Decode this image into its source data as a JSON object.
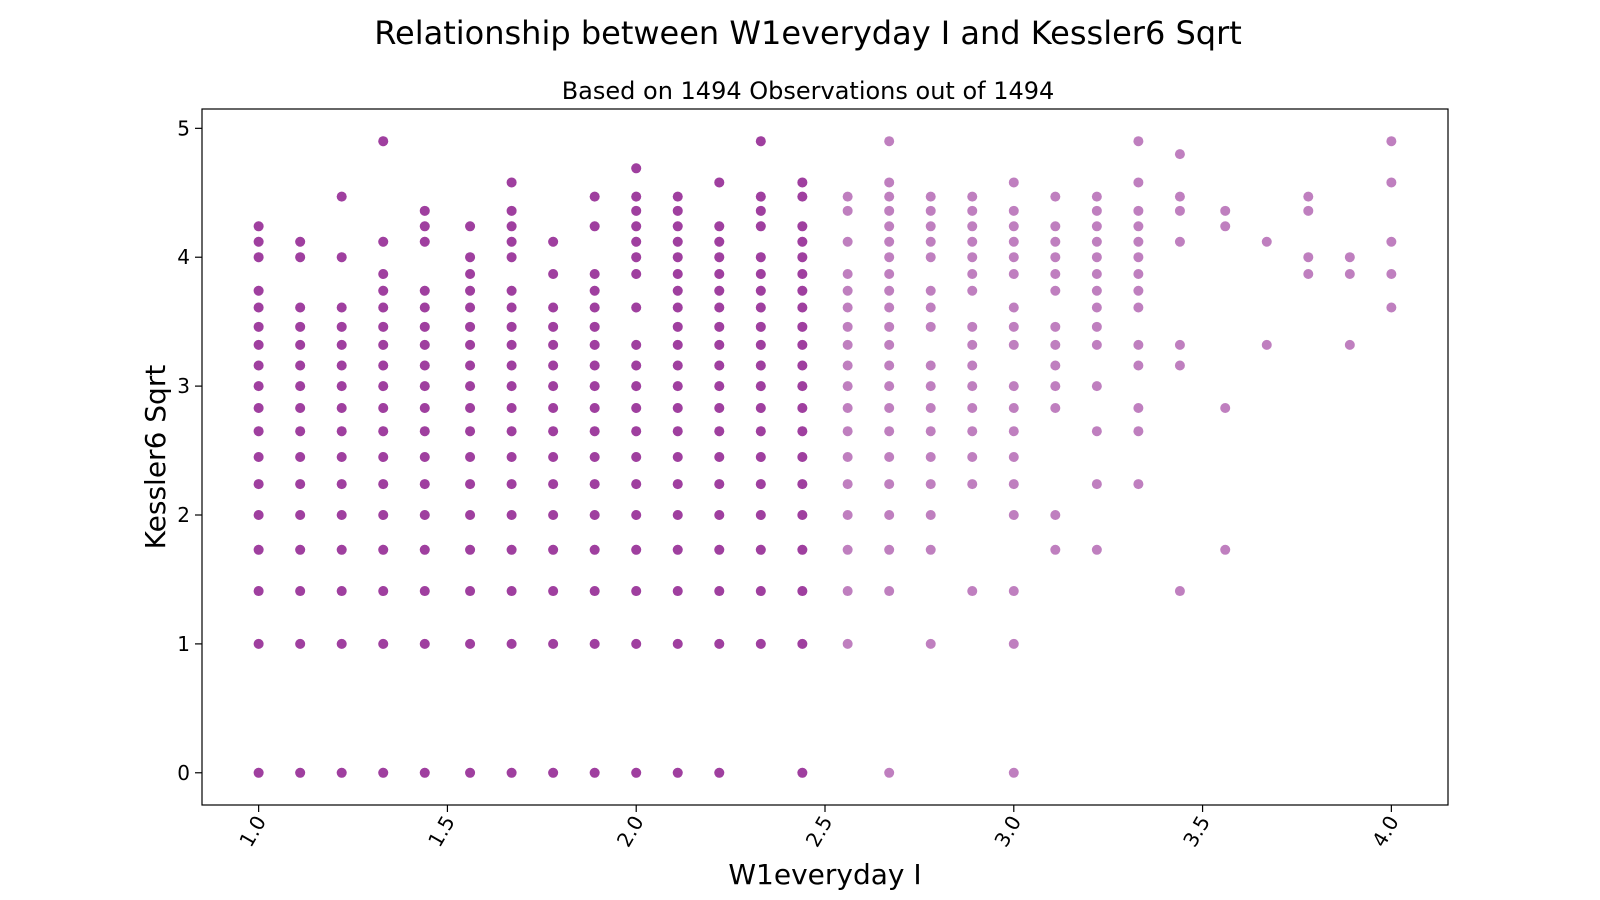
{
  "chart_data": {
    "type": "scatter",
    "title": "Relationship between W1everyday I and Kessler6 Sqrt",
    "subtitle": "Based on 1494 Observations out of 1494",
    "xlabel": "W1everyday I",
    "ylabel": "Kessler6 Sqrt",
    "xlim": [
      0.85,
      4.15
    ],
    "ylim": [
      -0.25,
      5.15
    ],
    "xticks": [
      1.0,
      1.5,
      2.0,
      2.5,
      3.0,
      3.5,
      4.0
    ],
    "xtick_labels": [
      "1.0",
      "1.5",
      "2.0",
      "2.5",
      "3.0",
      "3.5",
      "4.0"
    ],
    "yticks": [
      0,
      1,
      2,
      3,
      4,
      5
    ],
    "ytick_labels": [
      "0",
      "1",
      "2",
      "3",
      "4",
      "5"
    ],
    "grid": false,
    "legend": false,
    "marker_color": "#800080",
    "marker_alpha": 0.5,
    "columns": [
      {
        "x": 1.0,
        "y": [
          0,
          1,
          1.41,
          1.73,
          2,
          2.24,
          2.45,
          2.65,
          2.83,
          3,
          3.16,
          3.32,
          3.46,
          3.61,
          3.74,
          4,
          4.12,
          4.24
        ],
        "dense": true
      },
      {
        "x": 1.11,
        "y": [
          0,
          1,
          1.41,
          1.73,
          2,
          2.24,
          2.45,
          2.65,
          2.83,
          3,
          3.16,
          3.32,
          3.46,
          3.61,
          4,
          4.12
        ],
        "dense": true
      },
      {
        "x": 1.22,
        "y": [
          0,
          1,
          1.41,
          1.73,
          2,
          2.24,
          2.45,
          2.65,
          2.83,
          3,
          3.16,
          3.32,
          3.46,
          3.61,
          4,
          4.47
        ],
        "dense": true
      },
      {
        "x": 1.33,
        "y": [
          0,
          1,
          1.41,
          1.73,
          2,
          2.24,
          2.45,
          2.65,
          2.83,
          3,
          3.16,
          3.32,
          3.46,
          3.61,
          3.74,
          3.87,
          4.12,
          4.9
        ],
        "dense": true
      },
      {
        "x": 1.44,
        "y": [
          0,
          1,
          1.41,
          1.73,
          2,
          2.24,
          2.45,
          2.65,
          2.83,
          3,
          3.16,
          3.32,
          3.46,
          3.61,
          3.74,
          4.12,
          4.24,
          4.36
        ],
        "dense": true
      },
      {
        "x": 1.56,
        "y": [
          0,
          1,
          1.41,
          1.73,
          2,
          2.24,
          2.45,
          2.65,
          2.83,
          3,
          3.16,
          3.32,
          3.46,
          3.61,
          3.74,
          3.87,
          4,
          4.24
        ],
        "dense": true
      },
      {
        "x": 1.67,
        "y": [
          0,
          1,
          1.41,
          1.73,
          2,
          2.24,
          2.45,
          2.65,
          2.83,
          3,
          3.16,
          3.32,
          3.46,
          3.61,
          3.74,
          4,
          4.12,
          4.24,
          4.36,
          4.58
        ],
        "dense": true
      },
      {
        "x": 1.78,
        "y": [
          0,
          1,
          1.41,
          1.73,
          2,
          2.24,
          2.45,
          2.65,
          2.83,
          3,
          3.16,
          3.32,
          3.46,
          3.61,
          3.87,
          4.12
        ],
        "dense": true
      },
      {
        "x": 1.89,
        "y": [
          0,
          1,
          1.41,
          1.73,
          2,
          2.24,
          2.45,
          2.65,
          2.83,
          3,
          3.16,
          3.32,
          3.46,
          3.61,
          3.74,
          3.87,
          4.24,
          4.47
        ],
        "dense": true
      },
      {
        "x": 2.0,
        "y": [
          0,
          1,
          1.41,
          1.73,
          2,
          2.24,
          2.45,
          2.65,
          2.83,
          3,
          3.16,
          3.32,
          3.61,
          3.87,
          4,
          4.12,
          4.24,
          4.36,
          4.47,
          4.69
        ],
        "dense": true
      },
      {
        "x": 2.11,
        "y": [
          0,
          1,
          1.41,
          1.73,
          2,
          2.24,
          2.45,
          2.65,
          2.83,
          3,
          3.16,
          3.32,
          3.46,
          3.61,
          3.74,
          3.87,
          4,
          4.12,
          4.24,
          4.36,
          4.47
        ],
        "dense": true
      },
      {
        "x": 2.22,
        "y": [
          0,
          1,
          1.41,
          1.73,
          2,
          2.24,
          2.45,
          2.65,
          2.83,
          3,
          3.16,
          3.32,
          3.46,
          3.61,
          3.74,
          3.87,
          4,
          4.12,
          4.24,
          4.58
        ],
        "dense": true
      },
      {
        "x": 2.33,
        "y": [
          1,
          1.41,
          1.73,
          2,
          2.24,
          2.45,
          2.65,
          2.83,
          3,
          3.16,
          3.32,
          3.46,
          3.61,
          3.74,
          3.87,
          4,
          4.24,
          4.36,
          4.47,
          4.9
        ],
        "dense": true
      },
      {
        "x": 2.44,
        "y": [
          0,
          1,
          1.41,
          1.73,
          2,
          2.24,
          2.45,
          2.65,
          2.83,
          3,
          3.16,
          3.32,
          3.46,
          3.61,
          3.74,
          3.87,
          4,
          4.12,
          4.24,
          4.47,
          4.58
        ],
        "dense": true
      },
      {
        "x": 2.56,
        "y": [
          1,
          1.41,
          1.73,
          2,
          2.24,
          2.45,
          2.65,
          2.83,
          3,
          3.16,
          3.32,
          3.46,
          3.61,
          3.74,
          3.87,
          4.12,
          4.36,
          4.47
        ],
        "dense": false
      },
      {
        "x": 2.67,
        "y": [
          0,
          1.41,
          1.73,
          2,
          2.24,
          2.45,
          2.65,
          2.83,
          3,
          3.16,
          3.32,
          3.46,
          3.61,
          3.74,
          3.87,
          4,
          4.12,
          4.24,
          4.36,
          4.47,
          4.58,
          4.9
        ],
        "dense": false
      },
      {
        "x": 2.78,
        "y": [
          1,
          1.73,
          2,
          2.24,
          2.45,
          2.65,
          2.83,
          3,
          3.16,
          3.46,
          3.61,
          3.74,
          4,
          4.12,
          4.24,
          4.36,
          4.47
        ],
        "dense": false
      },
      {
        "x": 2.89,
        "y": [
          1.41,
          2.24,
          2.45,
          2.65,
          2.83,
          3,
          3.16,
          3.32,
          3.46,
          3.74,
          3.87,
          4,
          4.12,
          4.24,
          4.36,
          4.47
        ],
        "dense": false
      },
      {
        "x": 3.0,
        "y": [
          0,
          1,
          1.41,
          2,
          2.24,
          2.45,
          2.65,
          2.83,
          3,
          3.32,
          3.46,
          3.61,
          3.87,
          4,
          4.12,
          4.24,
          4.36,
          4.58
        ],
        "dense": false
      },
      {
        "x": 3.11,
        "y": [
          1.73,
          2,
          2.83,
          3,
          3.16,
          3.32,
          3.46,
          3.74,
          3.87,
          4,
          4.12,
          4.24,
          4.47
        ],
        "dense": false
      },
      {
        "x": 3.22,
        "y": [
          1.73,
          2.24,
          2.65,
          3,
          3.32,
          3.46,
          3.61,
          3.74,
          3.87,
          4,
          4.12,
          4.24,
          4.36,
          4.47
        ],
        "dense": false
      },
      {
        "x": 3.33,
        "y": [
          2.24,
          2.65,
          2.83,
          3.16,
          3.32,
          3.61,
          3.74,
          3.87,
          4,
          4.12,
          4.24,
          4.36,
          4.58,
          4.9
        ],
        "dense": false
      },
      {
        "x": 3.44,
        "y": [
          1.41,
          3.16,
          3.32,
          4.12,
          4.36,
          4.47,
          4.8
        ],
        "dense": false
      },
      {
        "x": 3.56,
        "y": [
          1.73,
          2.83,
          4.24,
          4.36
        ],
        "dense": false
      },
      {
        "x": 3.67,
        "y": [
          3.32,
          4.12
        ],
        "dense": false
      },
      {
        "x": 3.78,
        "y": [
          3.87,
          4,
          4.36,
          4.47
        ],
        "dense": false
      },
      {
        "x": 3.89,
        "y": [
          3.32,
          3.87,
          4
        ],
        "dense": false
      },
      {
        "x": 4.0,
        "y": [
          3.61,
          3.87,
          4.12,
          4.58,
          4.9
        ],
        "dense": false
      }
    ]
  }
}
